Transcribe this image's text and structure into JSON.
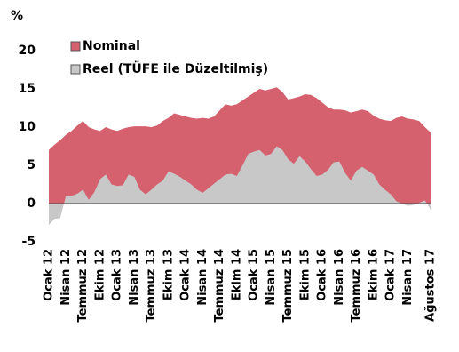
{
  "chart_data": {
    "type": "area",
    "y_label": "%",
    "categories": [
      "Ocak 12",
      null,
      null,
      "Nisan 12",
      null,
      null,
      "Temmuz 12",
      null,
      null,
      "Ekim 12",
      null,
      null,
      "Ocak 13",
      null,
      null,
      "Nisan 13",
      null,
      null,
      "Temmuz 13",
      null,
      null,
      "Ekim 13",
      null,
      null,
      "Ocak 14",
      null,
      null,
      "Nisan 14",
      null,
      null,
      "Temmuz 14",
      null,
      null,
      "Ekim 14",
      null,
      null,
      "Ocak 15",
      null,
      null,
      "Nisan 15",
      null,
      null,
      "Temmuz 15",
      null,
      null,
      "Ekim 15",
      null,
      null,
      "Ocak 16",
      null,
      null,
      "Nisan 16",
      null,
      null,
      "Temmuz 16",
      null,
      null,
      "Ekim 16",
      null,
      null,
      "Ocak 17",
      null,
      null,
      "Nisan 17",
      null,
      null,
      null,
      "Ağustos 17"
    ],
    "series": [
      {
        "name": "Nominal",
        "color": "#d5616f",
        "values": [
          7,
          7.7,
          8.3,
          9,
          9.5,
          10.2,
          10.8,
          10,
          9.7,
          9.5,
          10,
          9.7,
          9.5,
          9.8,
          10,
          10.1,
          10.1,
          10.1,
          10,
          10.2,
          10.8,
          11.2,
          11.8,
          11.6,
          11.4,
          11.2,
          11.1,
          11.2,
          11.1,
          11.4,
          12.2,
          13,
          12.8,
          13,
          13.5,
          14,
          14.5,
          15,
          14.8,
          15,
          15.2,
          14.6,
          13.6,
          13.8,
          14,
          14.3,
          14.2,
          13.8,
          13.2,
          12.6,
          12.3,
          12.3,
          12.2,
          11.9,
          12.1,
          12.3,
          12.1,
          11.5,
          11.1,
          10.9,
          10.8,
          11.2,
          11.4,
          11.1,
          11,
          10.8,
          10,
          9.3
        ]
      },
      {
        "name": "Reel (TÜFE ile Düzeltilmiş)",
        "color": "#c8c8c8",
        "values": [
          -2.8,
          -2,
          -1.9,
          1,
          1,
          1.3,
          1.8,
          0.5,
          1.5,
          3.2,
          3.8,
          2.5,
          2.3,
          2.4,
          3.8,
          3.5,
          1.8,
          1.2,
          1.8,
          2.5,
          3,
          4.2,
          3.9,
          3.5,
          3,
          2.5,
          1.8,
          1.4,
          2,
          2.6,
          3.2,
          3.8,
          3.9,
          3.6,
          5,
          6.5,
          6.8,
          7,
          6.3,
          6.5,
          7.5,
          7,
          5.8,
          5.2,
          6.2,
          5.5,
          4.5,
          3.6,
          3.8,
          4.4,
          5.4,
          5.5,
          4,
          3,
          4.3,
          4.8,
          4.3,
          3.8,
          2.5,
          1.8,
          1.2,
          0.3,
          0,
          -0.3,
          -0.2,
          0.1,
          0.4,
          -0.8
        ]
      }
    ],
    "ylim": [
      -5,
      20
    ],
    "yticks": [
      -5,
      0,
      5,
      10,
      15,
      20
    ],
    "legend": "top-left"
  }
}
